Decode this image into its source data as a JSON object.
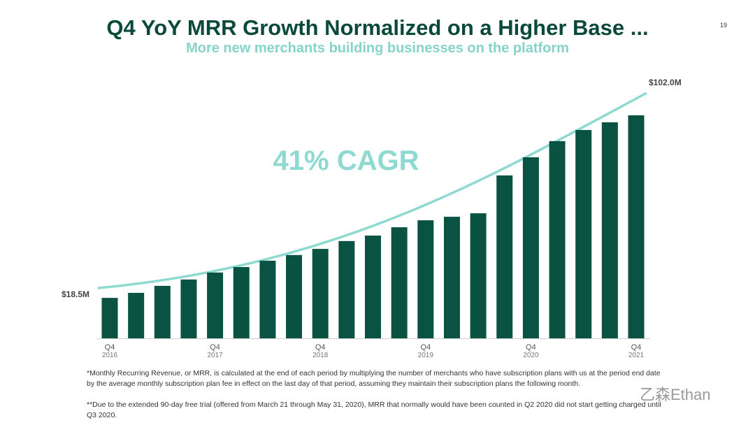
{
  "title": "Q4 YoY MRR Growth Normalized on a Higher Base ...",
  "subtitle": "More new merchants building businesses on the platform",
  "page_number": "19",
  "footnotes": [
    "*Monthly Recurring Revenue, or MRR, is calculated at the end of each period by multiplying the number of merchants who have subscription plans with us at the period end date by the average monthly subscription plan fee in effect on the last day of that period, assuming they maintain their subscription plans the following month.",
    "**Due to the extended 90-day free trial (offered from March 21 through May 31, 2020), MRR that normally would have been counted in Q2 2020 did not start getting charged until Q3 2020."
  ],
  "watermark": "乙森Ethan",
  "chart_data": {
    "type": "bar",
    "categories": [
      "Q4 2016",
      null,
      null,
      null,
      "Q4 2017",
      null,
      null,
      null,
      "Q4 2018",
      null,
      null,
      null,
      "Q4 2019",
      null,
      null,
      null,
      "Q4 2020",
      null,
      null,
      null,
      "Q4 2021"
    ],
    "values": [
      18.5,
      20.8,
      24.0,
      26.9,
      30.1,
      32.6,
      35.5,
      38.1,
      40.9,
      44.5,
      47.0,
      50.8,
      54.0,
      55.6,
      57.2,
      74.5,
      82.8,
      90.2,
      95.3,
      98.8,
      102.0
    ],
    "color": "#0a5241",
    "trend": {
      "values": [
        18.5,
        102.0
      ],
      "value_labels": [
        "$18.5M",
        "$102.0M"
      ],
      "label": "41% CAGR",
      "color": "#8fdad0"
    }
  }
}
